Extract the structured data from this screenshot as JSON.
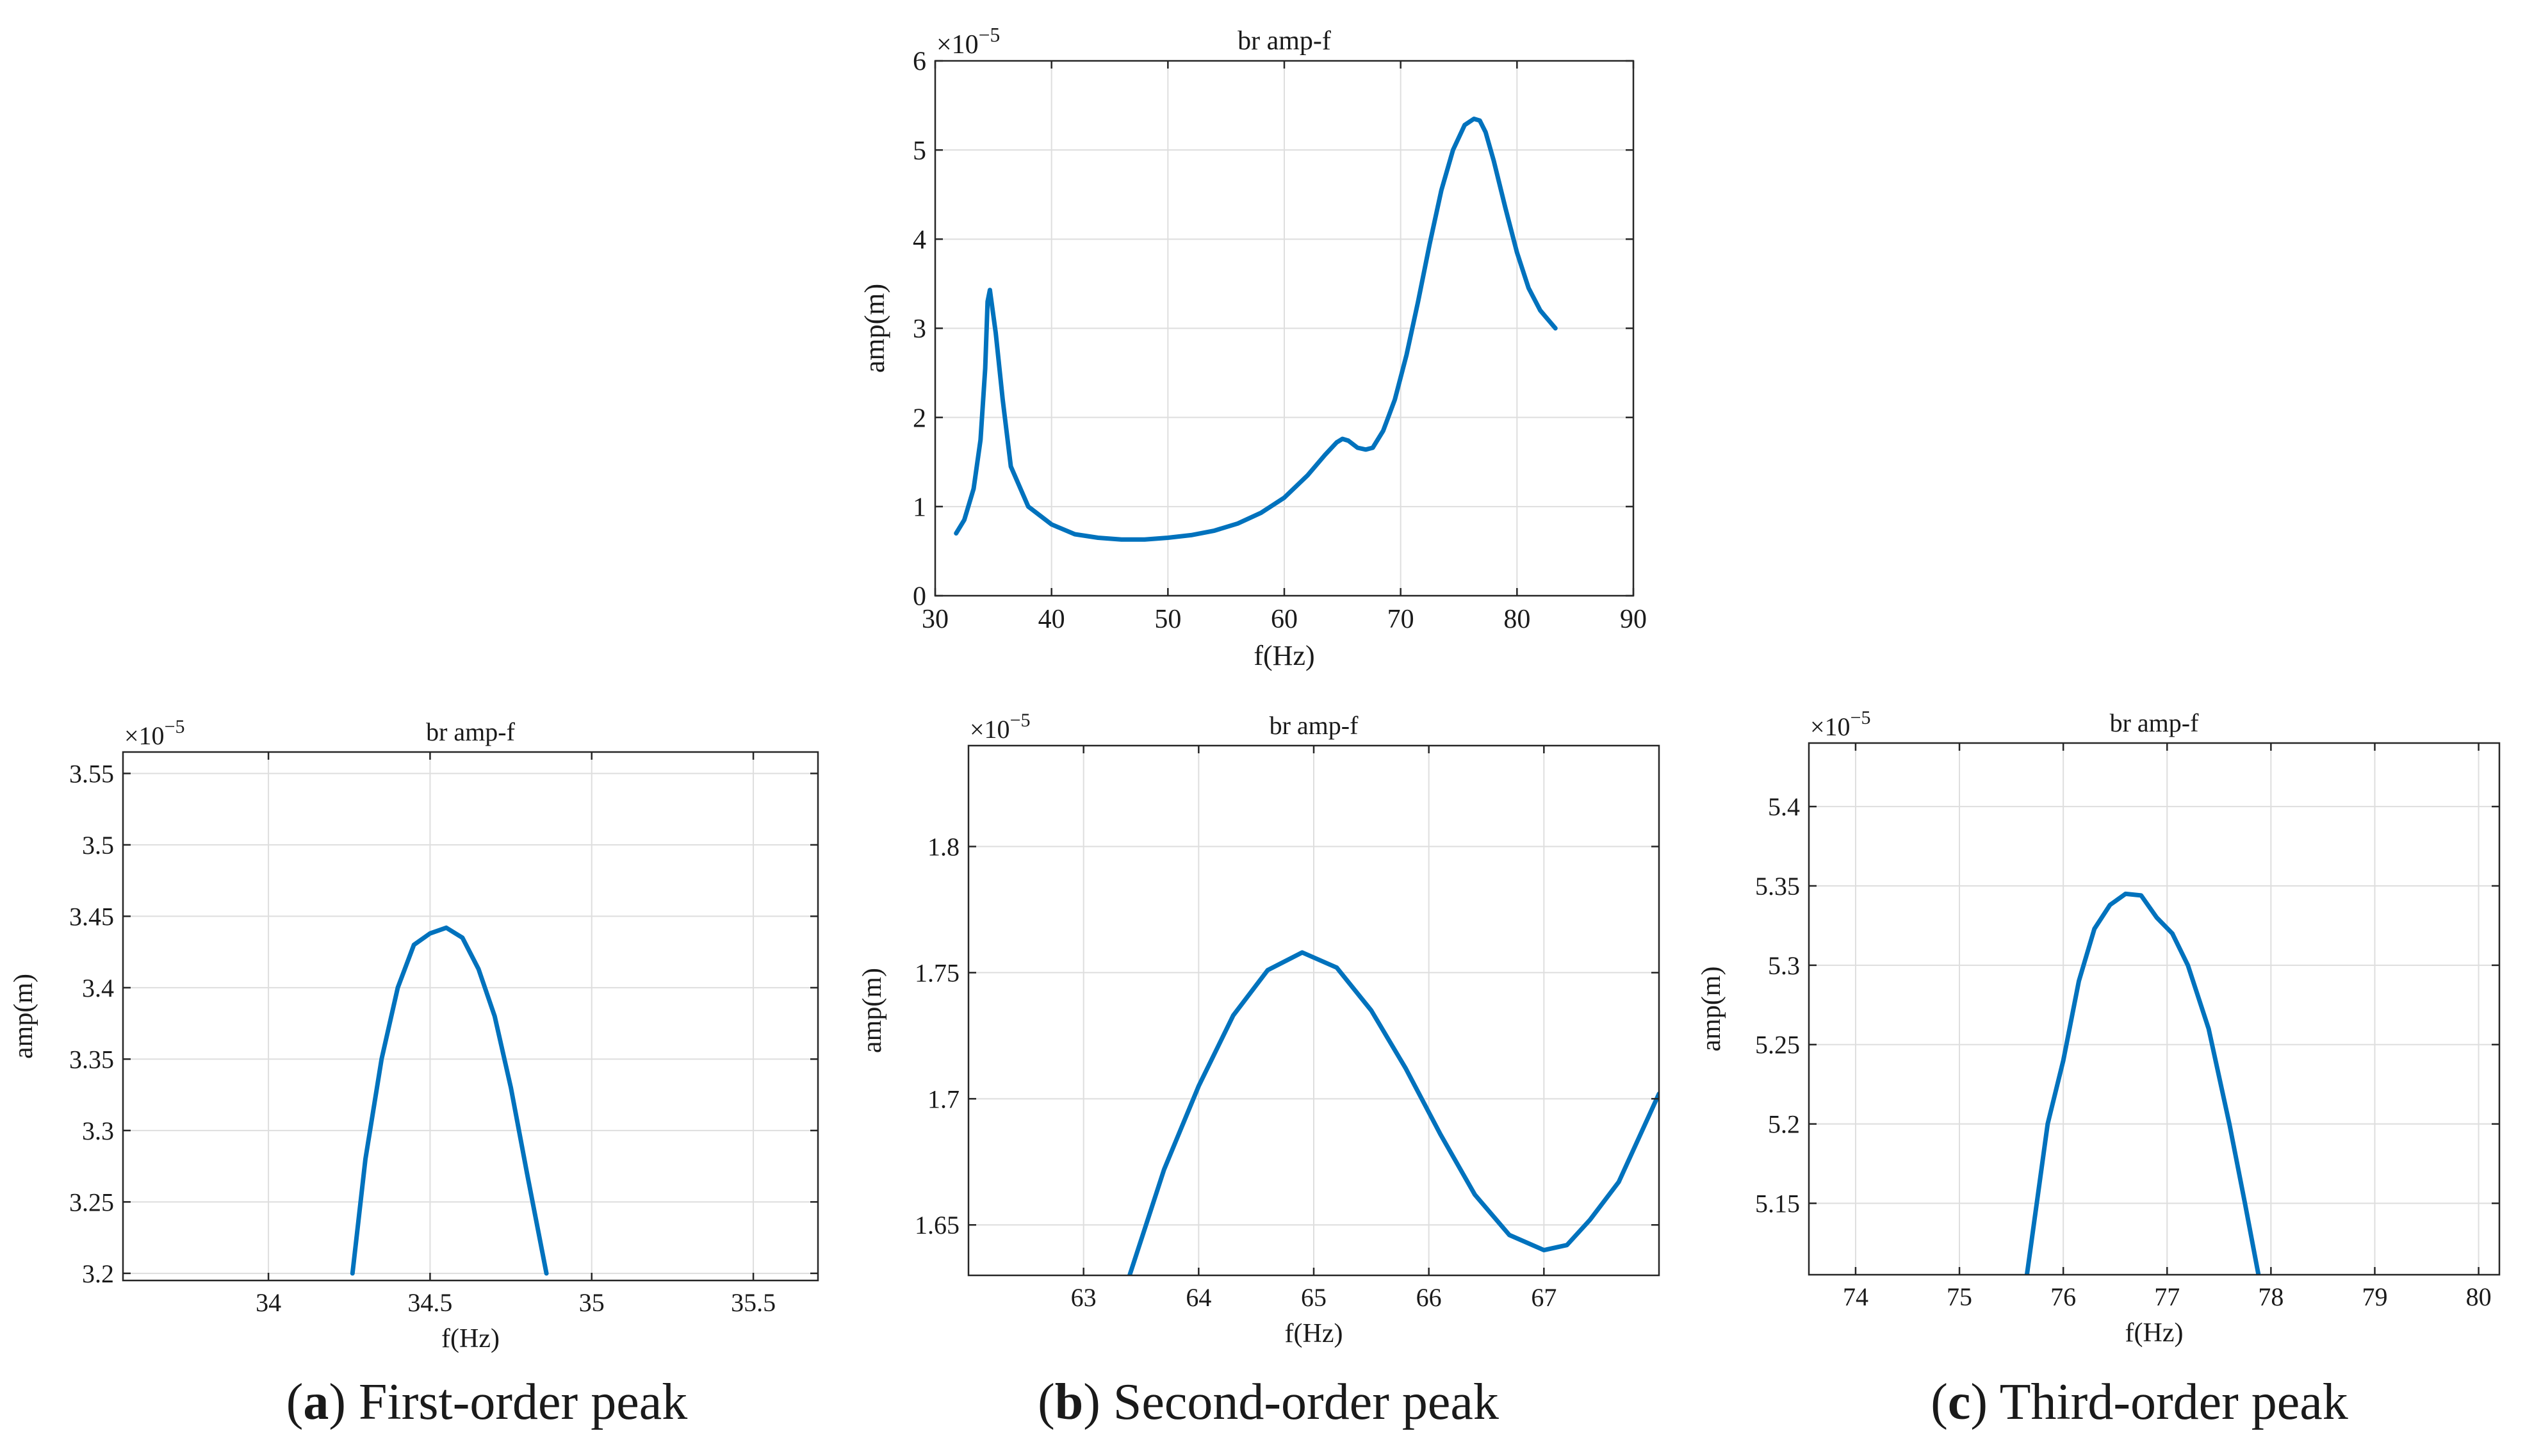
{
  "figure_colors": {
    "line": "#0072BD",
    "grid": "#dedede",
    "axis": "#262626",
    "text": "#1a1a1a"
  },
  "chart_data": [
    {
      "id": "main",
      "type": "line",
      "title": "br amp-f",
      "xlabel": "f(Hz)",
      "ylabel": "amp(m)",
      "exponent_label": "×10",
      "exponent_power": "−5",
      "xlim": [
        30,
        90
      ],
      "ylim": [
        0,
        6
      ],
      "xticks": [
        30,
        40,
        50,
        60,
        70,
        80,
        90
      ],
      "yticks": [
        0,
        1,
        2,
        3,
        4,
        5,
        6
      ],
      "xtick_labels": [
        "30",
        "40",
        "50",
        "60",
        "70",
        "80",
        "90"
      ],
      "ytick_labels": [
        "0",
        "1",
        "2",
        "3",
        "4",
        "5",
        "6"
      ],
      "grid": true,
      "series": [
        {
          "name": "br amp-f",
          "x": [
            31.8,
            32.5,
            33.3,
            33.9,
            34.3,
            34.5,
            34.7,
            35.2,
            35.8,
            36.5,
            38,
            40,
            42,
            44,
            46,
            48,
            50,
            52,
            54,
            56,
            58,
            60,
            62,
            63.5,
            64.5,
            65,
            65.5,
            66.3,
            67,
            67.6,
            68.5,
            69.5,
            70.5,
            71.5,
            72.5,
            73.5,
            74.5,
            75.5,
            76.3,
            76.8,
            77.3,
            78,
            79,
            80,
            81,
            82,
            83.3
          ],
          "y": [
            0.7,
            0.85,
            1.2,
            1.75,
            2.55,
            3.3,
            3.43,
            2.95,
            2.2,
            1.45,
            1.0,
            0.8,
            0.69,
            0.65,
            0.63,
            0.63,
            0.65,
            0.68,
            0.73,
            0.81,
            0.93,
            1.1,
            1.35,
            1.58,
            1.72,
            1.76,
            1.74,
            1.66,
            1.64,
            1.66,
            1.85,
            2.2,
            2.7,
            3.3,
            3.95,
            4.55,
            5.0,
            5.28,
            5.35,
            5.33,
            5.2,
            4.88,
            4.35,
            3.85,
            3.45,
            3.2,
            3.0
          ]
        }
      ]
    },
    {
      "id": "a",
      "type": "line",
      "title": "br amp-f",
      "xlabel": "f(Hz)",
      "ylabel": "amp(m)",
      "exponent_label": "×10",
      "exponent_power": "−5",
      "xlim": [
        33.55,
        35.7
      ],
      "ylim": [
        3.195,
        3.565
      ],
      "xticks": [
        34,
        34.5,
        35,
        35.5
      ],
      "yticks": [
        3.2,
        3.25,
        3.3,
        3.35,
        3.4,
        3.45,
        3.5,
        3.55
      ],
      "xtick_labels": [
        "34",
        "34.5",
        "35",
        "35.5"
      ],
      "ytick_labels": [
        "3.2",
        "3.25",
        "3.3",
        "3.35",
        "3.4",
        "3.45",
        "3.5",
        "3.55"
      ],
      "grid": true,
      "caption_letter": "a",
      "caption_text": " First-order peak",
      "series": [
        {
          "name": "br amp-f",
          "x": [
            34.26,
            34.3,
            34.35,
            34.4,
            34.45,
            34.5,
            34.55,
            34.6,
            34.65,
            34.7,
            34.75,
            34.8,
            34.86
          ],
          "y": [
            3.2,
            3.28,
            3.35,
            3.4,
            3.43,
            3.438,
            3.442,
            3.435,
            3.413,
            3.38,
            3.33,
            3.27,
            3.2
          ]
        }
      ]
    },
    {
      "id": "b",
      "type": "line",
      "title": "br amp-f",
      "xlabel": "f(Hz)",
      "ylabel": "amp(m)",
      "exponent_label": "×10",
      "exponent_power": "−5",
      "xlim": [
        62.0,
        68.0
      ],
      "ylim": [
        1.63,
        1.84
      ],
      "xticks": [
        63,
        64,
        65,
        66,
        67
      ],
      "yticks": [
        1.65,
        1.7,
        1.75,
        1.8
      ],
      "xtick_labels": [
        "63",
        "64",
        "65",
        "66",
        "67"
      ],
      "ytick_labels": [
        "1.65",
        "1.7",
        "1.75",
        "1.8"
      ],
      "grid": true,
      "caption_letter": "b",
      "caption_text": " Second-order peak",
      "series": [
        {
          "name": "br amp-f",
          "x": [
            63.4,
            63.7,
            64.0,
            64.3,
            64.6,
            64.9,
            65.2,
            65.5,
            65.8,
            66.1,
            66.4,
            66.7,
            67.0,
            67.2,
            67.4,
            67.65,
            68.0
          ],
          "y": [
            1.63,
            1.672,
            1.705,
            1.733,
            1.751,
            1.758,
            1.752,
            1.735,
            1.712,
            1.686,
            1.662,
            1.646,
            1.64,
            1.642,
            1.652,
            1.667,
            1.702
          ]
        }
      ]
    },
    {
      "id": "c",
      "type": "line",
      "title": "br amp-f",
      "xlabel": "f(Hz)",
      "ylabel": "amp(m)",
      "exponent_label": "×10",
      "exponent_power": "−5",
      "xlim": [
        73.55,
        80.2
      ],
      "ylim": [
        5.105,
        5.44
      ],
      "xticks": [
        74,
        75,
        76,
        77,
        78,
        79,
        80
      ],
      "yticks": [
        5.15,
        5.2,
        5.25,
        5.3,
        5.35,
        5.4
      ],
      "xtick_labels": [
        "74",
        "75",
        "76",
        "77",
        "78",
        "79",
        "80"
      ],
      "ytick_labels": [
        "5.15",
        "5.2",
        "5.25",
        "5.3",
        "5.35",
        "5.4"
      ],
      "grid": true,
      "caption_letter": "c",
      "caption_text": " Third-order peak",
      "series": [
        {
          "name": "br amp-f",
          "x": [
            75.65,
            75.85,
            76.0,
            76.15,
            76.3,
            76.45,
            76.6,
            76.75,
            76.9,
            77.05,
            77.2,
            77.4,
            77.6,
            77.75,
            77.88
          ],
          "y": [
            5.105,
            5.2,
            5.24,
            5.29,
            5.323,
            5.338,
            5.345,
            5.344,
            5.33,
            5.32,
            5.3,
            5.26,
            5.2,
            5.15,
            5.105
          ]
        }
      ]
    }
  ]
}
